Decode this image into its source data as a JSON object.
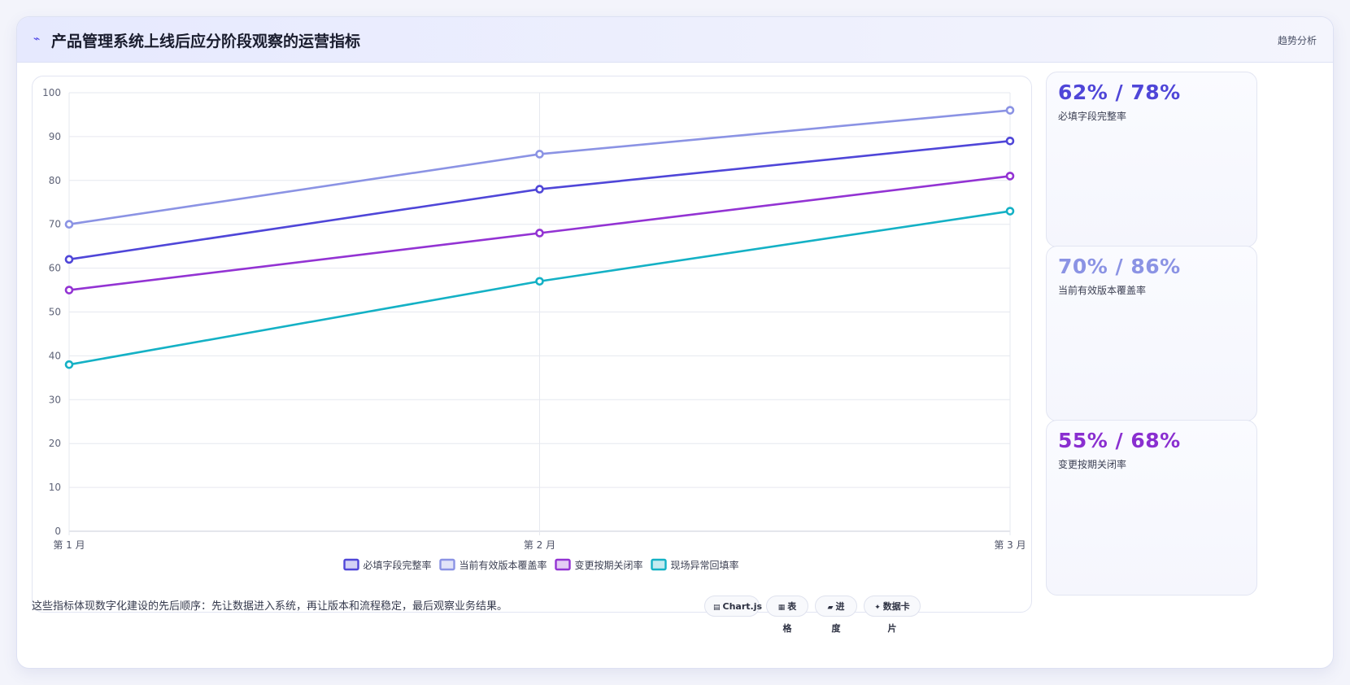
{
  "header": {
    "icon": "pulse-icon",
    "title": "产品管理系统上线后应分阶段观察的运营指标",
    "tag": "趋势分析"
  },
  "chart_data": {
    "type": "line",
    "categories": [
      "第 1 月",
      "第 2 月",
      "第 3 月"
    ],
    "ylim": [
      0,
      100
    ],
    "yticks": [
      0,
      10,
      20,
      30,
      40,
      50,
      60,
      70,
      80,
      90,
      100
    ],
    "grid": true,
    "legend": "bottom",
    "series": [
      {
        "name": "必填字段完整率",
        "values": [
          62,
          78,
          89
        ],
        "color": "#4f46d8"
      },
      {
        "name": "当前有效版本覆盖率",
        "values": [
          70,
          86,
          96
        ],
        "color": "#8b93e4"
      },
      {
        "name": "变更按期关闭率",
        "values": [
          55,
          68,
          81
        ],
        "color": "#9333d3"
      },
      {
        "name": "现场异常回填率",
        "values": [
          38,
          57,
          73
        ],
        "color": "#14b1c5"
      }
    ]
  },
  "kpis": [
    {
      "value": "62% / 78%",
      "label": "必填字段完整率",
      "color": "#4f46d8"
    },
    {
      "value": "70% / 86%",
      "label": "当前有效版本覆盖率",
      "color": "#8b93e4"
    },
    {
      "value": "55% / 68%",
      "label": "变更按期关闭率",
      "color": "#8a2fd0"
    }
  ],
  "footer": {
    "note": "这些指标体现数字化建设的先后顺序：先让数据进入系统，再让版本和流程稳定，最后观察业务结果。",
    "pills": [
      {
        "icon": "chart-icon",
        "glyph": "▤",
        "label": "Chart.js"
      },
      {
        "icon": "table-icon",
        "glyph": "▦",
        "label": "表格"
      },
      {
        "icon": "progress-icon",
        "glyph": "▰",
        "label": "进度"
      },
      {
        "icon": "card-icon",
        "glyph": "✦",
        "label": "数据卡片"
      }
    ]
  }
}
